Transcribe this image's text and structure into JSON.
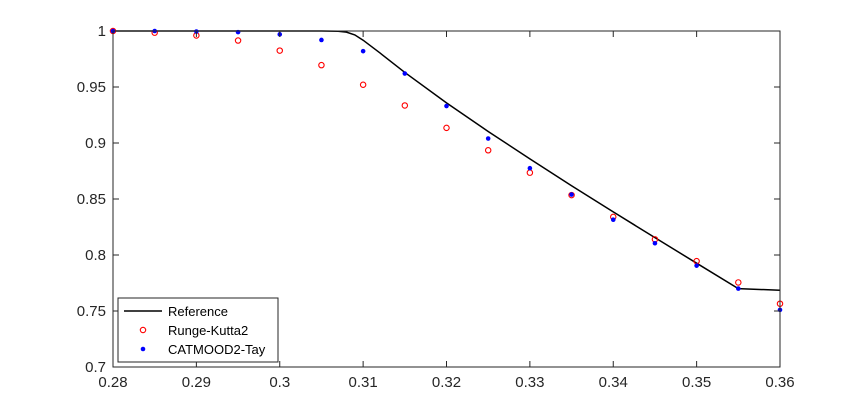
{
  "chart_data": {
    "type": "line",
    "title": "",
    "xlabel": "",
    "ylabel": "",
    "xlim": [
      0.28,
      0.36
    ],
    "ylim": [
      0.7,
      1.0
    ],
    "xticks": [
      0.28,
      0.29,
      0.3,
      0.31,
      0.32,
      0.33,
      0.34,
      0.35,
      0.36
    ],
    "xtick_labels": [
      "0.28",
      "0.29",
      "0.3",
      "0.31",
      "0.32",
      "0.33",
      "0.34",
      "0.35",
      "0.36"
    ],
    "yticks": [
      0.7,
      0.75,
      0.8,
      0.85,
      0.9,
      0.95,
      1.0
    ],
    "ytick_labels": [
      "0.7",
      "0.75",
      "0.8",
      "0.85",
      "0.9",
      "0.95",
      "1"
    ],
    "grid": false,
    "legend_position": "bottom-left",
    "series": [
      {
        "name": "Reference",
        "style": "solid-line",
        "color": "#000000",
        "x": [
          0.28,
          0.29,
          0.3,
          0.305,
          0.307,
          0.308,
          0.309,
          0.31,
          0.312,
          0.315,
          0.32,
          0.325,
          0.33,
          0.335,
          0.34,
          0.345,
          0.35,
          0.355,
          0.36
        ],
        "y": [
          1.0,
          1.0,
          1.0,
          1.0,
          0.9998,
          0.999,
          0.9965,
          0.9918,
          0.9805,
          0.963,
          0.9358,
          0.9103,
          0.8858,
          0.8618,
          0.8385,
          0.8155,
          0.7927,
          0.77,
          0.7685
        ]
      },
      {
        "name": "Runge-Kutta2",
        "style": "open-circle",
        "color": "#ff0000",
        "x": [
          0.28,
          0.285,
          0.29,
          0.295,
          0.3,
          0.305,
          0.31,
          0.315,
          0.32,
          0.325,
          0.33,
          0.335,
          0.34,
          0.345,
          0.35,
          0.355,
          0.36
        ],
        "y": [
          1.0,
          0.9985,
          0.996,
          0.9915,
          0.9825,
          0.9695,
          0.952,
          0.9335,
          0.9135,
          0.8935,
          0.8735,
          0.8535,
          0.834,
          0.814,
          0.7945,
          0.7755,
          0.7565
        ]
      },
      {
        "name": "CATMOOD2-Tay",
        "style": "dot",
        "color": "#0000ff",
        "x": [
          0.28,
          0.285,
          0.29,
          0.295,
          0.3,
          0.305,
          0.31,
          0.315,
          0.32,
          0.325,
          0.33,
          0.335,
          0.34,
          0.345,
          0.35,
          0.355,
          0.36
        ],
        "y": [
          1.0,
          1.0,
          0.9995,
          0.999,
          0.997,
          0.992,
          0.982,
          0.962,
          0.933,
          0.904,
          0.8775,
          0.854,
          0.8315,
          0.8105,
          0.7905,
          0.77,
          0.751
        ]
      }
    ]
  }
}
